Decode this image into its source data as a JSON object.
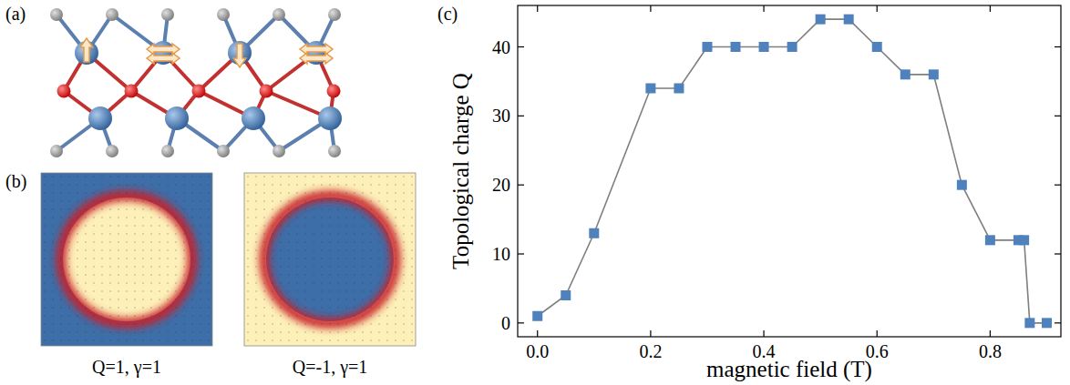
{
  "panel_labels": [
    "(a)",
    "(b)",
    "(c)"
  ],
  "skyrmion_captions": [
    "Q=1, γ=1",
    "Q=-1, γ=1"
  ],
  "chart_data": {
    "type": "line",
    "x_label": "magnetic field (T)",
    "y_label": "Topological charge Q",
    "x": [
      0,
      0.05,
      0.1,
      0.2,
      0.25,
      0.3,
      0.35,
      0.4,
      0.45,
      0.5,
      0.55,
      0.6,
      0.65,
      0.7,
      0.75,
      0.8,
      0.85,
      0.86,
      0.87,
      0.9
    ],
    "values": [
      1,
      4,
      13,
      34,
      34,
      40,
      40,
      40,
      40,
      44,
      44,
      40,
      36,
      36,
      20,
      12,
      12,
      12,
      0,
      0
    ],
    "color": "#4f81bd",
    "marker": "square",
    "line_style": "solid",
    "xlim": [
      -0.035,
      0.925
    ],
    "ylim": [
      -2,
      46
    ],
    "xticks": [
      {
        "value": 0,
        "label": "0.0"
      },
      0.2,
      0.4,
      0.6,
      0.8
    ],
    "yticks": [
      0,
      10,
      20,
      30,
      40
    ],
    "grid": false
  }
}
